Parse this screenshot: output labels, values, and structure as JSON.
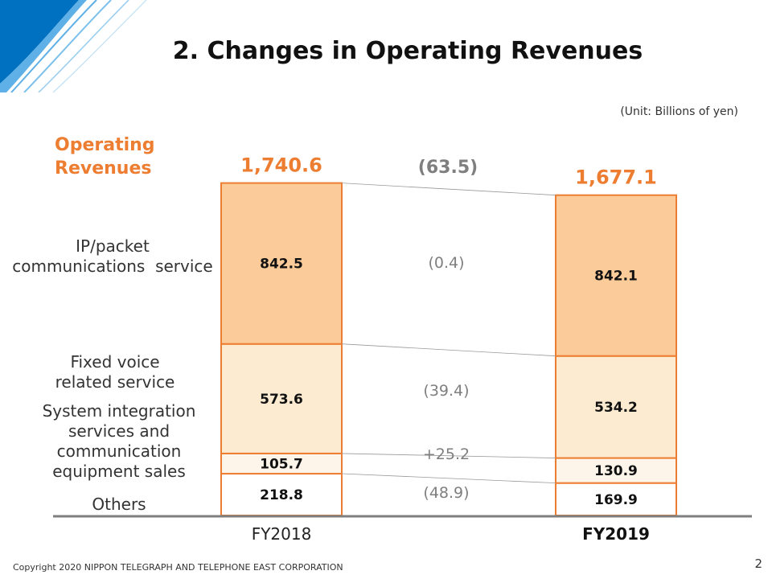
{
  "slide": {
    "title": "2. Changes in Operating Revenues",
    "unit": "(Unit: Billions of yen)",
    "operating_label": "Operating Revenues",
    "copyright": "Copyright 2020 NIPPON TELEGRAPH AND TELEPHONE EAST CORPORATION",
    "page_number": "2"
  },
  "colors": {
    "accent": "#ED7D31",
    "ip": "#FBCB9A",
    "fixed": "#FDEBD1",
    "sysint": "#FEF5EA",
    "others": "#FFFFFF",
    "change_text": "#7F7F7F",
    "brand_blue": "#0070C0"
  },
  "chart_data": {
    "type": "bar",
    "stacked": true,
    "categories": [
      "FY2018",
      "FY2019"
    ],
    "totals": [
      "1,740.6",
      "1,677.1"
    ],
    "total_change": "(63.5)",
    "series": [
      {
        "name": "Others",
        "values": [
          218.8,
          169.9
        ],
        "labels": [
          "218.8",
          "169.9"
        ],
        "change": "(48.9)"
      },
      {
        "name": "System integration services and communication equipment sales",
        "values": [
          105.7,
          130.9
        ],
        "labels": [
          "105.7",
          "130.9"
        ],
        "change": "+25.2"
      },
      {
        "name": "Fixed voice related service",
        "values": [
          573.6,
          534.2
        ],
        "labels": [
          "573.6",
          "534.2"
        ],
        "change": "(39.4)"
      },
      {
        "name": "IP/packet communications service",
        "values": [
          842.5,
          842.1
        ],
        "labels": [
          "842.5",
          "842.1"
        ],
        "change": "(0.4)"
      }
    ],
    "legend_side": "left"
  },
  "segment_labels": {
    "ip": [
      "IP/packet",
      "communications  service"
    ],
    "fixed": [
      "Fixed voice",
      "related service"
    ],
    "sysint": [
      "System integration",
      "services and",
      "communication",
      "equipment sales"
    ],
    "others": [
      "Others"
    ]
  }
}
